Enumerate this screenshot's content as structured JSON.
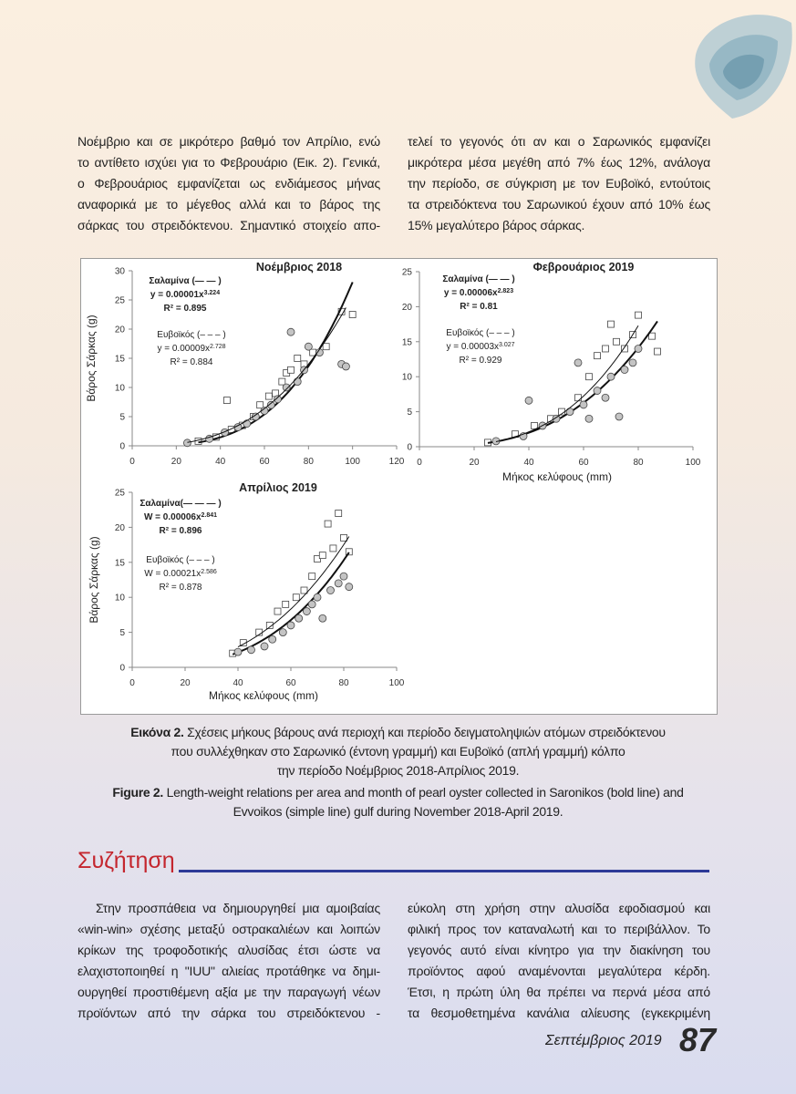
{
  "top_text": {
    "left": [
      "Νοέμβριο και σε μικρότερο βαθμό τον Απρίλιο, ενώ",
      "το αντίθετο ισχύει για το Φεβρουάριο (Εικ. 2). Γενικά,",
      "ο Φεβρουάριος εμφανίζεται ως ενδιάμεσος μήνας",
      "αναφορικά με το μέγεθος αλλά και το βάρος της",
      "σάρκας του στρειδόκτενου. Σημαντικό στοιχείο απο-"
    ],
    "right": [
      "τελεί το γεγονός ότι αν και ο Σαρωνικός εμφανίζει",
      "μικρότερα μέσα μεγέθη από 7% έως 12%, ανάλογα",
      "την περίοδο, σε σύγκριση με τον Ευβοϊκό, εντούτοις",
      "τα στρειδόκτενα του Σαρωνικού έχουν από 10% έως",
      "15% μεγαλύτερο βάρος σάρκας."
    ]
  },
  "chart_data": [
    {
      "type": "scatter",
      "title": "Νοέμβριος 2018",
      "y_label": "Βάρος Σάρκας (g)",
      "xlim": [
        0,
        120
      ],
      "ylim": [
        0,
        30
      ],
      "xticks": [
        0,
        20,
        40,
        60,
        80,
        100,
        120
      ],
      "yticks": [
        0,
        5,
        10,
        15,
        20,
        25,
        30
      ],
      "series": [
        {
          "name": "Σαλαμίνα (— — )",
          "marker": "square",
          "color": "#ffffff",
          "x": [
            30,
            38,
            43,
            45,
            50,
            55,
            58,
            62,
            65,
            68,
            70,
            72,
            75,
            78,
            82,
            88,
            95,
            100
          ],
          "values": [
            0.8,
            1.5,
            7.8,
            2.8,
            3.5,
            5,
            7,
            8.5,
            9,
            11,
            12.5,
            13,
            15,
            14,
            16,
            17,
            23,
            22.5
          ],
          "fit": {
            "lhs": "y = ",
            "coefficient": 1e-05,
            "variable": "x",
            "exponent": 3.224,
            "r2_prefix": "R² = ",
            "r2": 0.895
          }
        },
        {
          "name": "Ευβοϊκός (– – – )",
          "marker": "circle",
          "color": "#c4c4c4",
          "x": [
            25,
            35,
            42,
            48,
            52,
            56,
            60,
            63,
            66,
            70,
            72,
            75,
            78,
            80,
            85,
            95,
            97
          ],
          "values": [
            0.5,
            1.2,
            2.3,
            3.2,
            3.8,
            5,
            6,
            7,
            8,
            10,
            19.5,
            11,
            13,
            17,
            16,
            14,
            13.6
          ],
          "fit": {
            "lhs": "y = ",
            "coefficient": 9e-05,
            "variable": "x",
            "exponent": 2.728,
            "r2_prefix": "R² = ",
            "r2": 0.884
          }
        }
      ]
    },
    {
      "type": "scatter",
      "title": "Φεβρουάριος 2019",
      "x_label": "Μήκος κελύφους (mm)",
      "xlim": [
        0,
        100
      ],
      "ylim": [
        0,
        25
      ],
      "xticks": [
        0,
        20,
        40,
        60,
        80,
        100
      ],
      "yticks": [
        0,
        5,
        10,
        15,
        20,
        25
      ],
      "series": [
        {
          "name": "Σαλαμίνα (— — )",
          "marker": "square",
          "color": "#ffffff",
          "x": [
            25,
            35,
            42,
            48,
            52,
            58,
            62,
            65,
            68,
            70,
            72,
            75,
            78,
            80,
            85,
            87
          ],
          "values": [
            0.6,
            1.8,
            3,
            4,
            5,
            7,
            10,
            13,
            14,
            17.5,
            15,
            14,
            16,
            18.8,
            15.8,
            13.6
          ],
          "fit": {
            "lhs": "y = ",
            "coefficient": 6e-05,
            "variable": "x",
            "exponent": 2.823,
            "r2_prefix": "R² = ",
            "r2": 0.81
          }
        },
        {
          "name": "Ευβοϊκός (– – – )",
          "marker": "circle",
          "color": "#c4c4c4",
          "x": [
            28,
            38,
            40,
            45,
            50,
            55,
            58,
            60,
            62,
            65,
            68,
            70,
            73,
            75,
            78,
            80
          ],
          "values": [
            0.8,
            1.5,
            6.6,
            3,
            4,
            5,
            12,
            6,
            4,
            8,
            7,
            10,
            4.3,
            11,
            12,
            14
          ],
          "fit": {
            "lhs": "y = ",
            "coefficient": 3e-05,
            "variable": "x",
            "exponent": 3.027,
            "r2_prefix": "R² = ",
            "r2": 0.929
          }
        }
      ]
    },
    {
      "type": "scatter",
      "title": "Απρίλιος 2019",
      "x_label": "Μήκος κελύφους (mm)",
      "y_label": "Βάρος Σάρκας (g)",
      "xlim": [
        0,
        100
      ],
      "ylim": [
        0,
        25
      ],
      "xticks": [
        0,
        20,
        40,
        60,
        80,
        100
      ],
      "yticks": [
        0,
        5,
        10,
        15,
        20,
        25
      ],
      "series": [
        {
          "name": "Σαλαμίνα(— — — )",
          "marker": "square",
          "color": "#ffffff",
          "x": [
            38,
            42,
            48,
            52,
            55,
            58,
            62,
            65,
            68,
            70,
            72,
            74,
            76,
            78,
            80,
            82
          ],
          "values": [
            2,
            3.5,
            5,
            6,
            8,
            9,
            10,
            11,
            13,
            15.5,
            16,
            20.5,
            17,
            22,
            18.5,
            16.5
          ],
          "fit": {
            "lhs": "W = ",
            "coefficient": 6e-05,
            "variable": "x",
            "exponent": 2.841,
            "r2_prefix": "R² = ",
            "r2": 0.896
          }
        },
        {
          "name": "Ευβοϊκός (– – – )",
          "marker": "circle",
          "color": "#c4c4c4",
          "x": [
            40,
            45,
            50,
            53,
            57,
            60,
            63,
            66,
            68,
            70,
            72,
            75,
            78,
            80,
            82
          ],
          "values": [
            2.2,
            2.5,
            3,
            4,
            5,
            6,
            7,
            8,
            9,
            10,
            7,
            11,
            12,
            13,
            11.5
          ],
          "fit": {
            "lhs": "W = ",
            "coefficient": 0.00021,
            "variable": "x",
            "exponent": 2.586,
            "r2_prefix": "R² = ",
            "r2": 0.878
          }
        }
      ]
    }
  ],
  "caption": {
    "gr_label": "Εικόνα 2.",
    "gr_lines": [
      " Σχέσεις μήκους βάρους ανά περιοχή και περίοδο δειγματοληψιών ατόμων στρειδόκτενου",
      "που συλλέχθηκαν στο Σαρωνικό (έντονη γραμμή) και Ευβοϊκό  (απλή γραμμή) κόλπο",
      "την περίοδο Νοέμβριος 2018-Απρίλιος 2019."
    ],
    "en_label": "Figure 2.",
    "en_lines": [
      " Length-weight relations per area and month of pearl oyster collected in Saronikos (bold line) and",
      "Evvoikos (simple line) gulf during November 2018-April 2019."
    ]
  },
  "section": {
    "heading": "Συζήτηση",
    "left": [
      "Στην προσπάθεια να δημιουργηθεί μια αμοιβαίας",
      "«win-win» σχέσης μεταξύ οστρακαλιέων και λοιπών",
      "κρίκων της τροφοδοτικής αλυσίδας έτσι ώστε να",
      "ελαχιστοποιηθεί η \"IUU\" αλιείας προτάθηκε να δημι-",
      "ουργηθεί προστιθέμενη αξία με την παραγωγή νέων",
      "προϊόντων από την σάρκα του στρειδόκτενου -"
    ],
    "right": [
      "εύκολη στη χρήση στην αλυσίδα εφοδιασμού και",
      "φιλική προς τον καταναλωτή και το περιβάλλον. Το",
      "γεγονός αυτό είναι κίνητρο για την διακίνηση του",
      "προϊόντος αφού αναμένονται μεγαλύτερα κέρδη.",
      "Έτσι, η πρώτη ύλη θα πρέπει να περνά μέσα από",
      "τα θεσμοθετημένα κανάλια αλίευσης (εγκεκριμένη"
    ]
  },
  "footer": {
    "date": "Σεπτέμβριος 2019",
    "page": 87
  }
}
